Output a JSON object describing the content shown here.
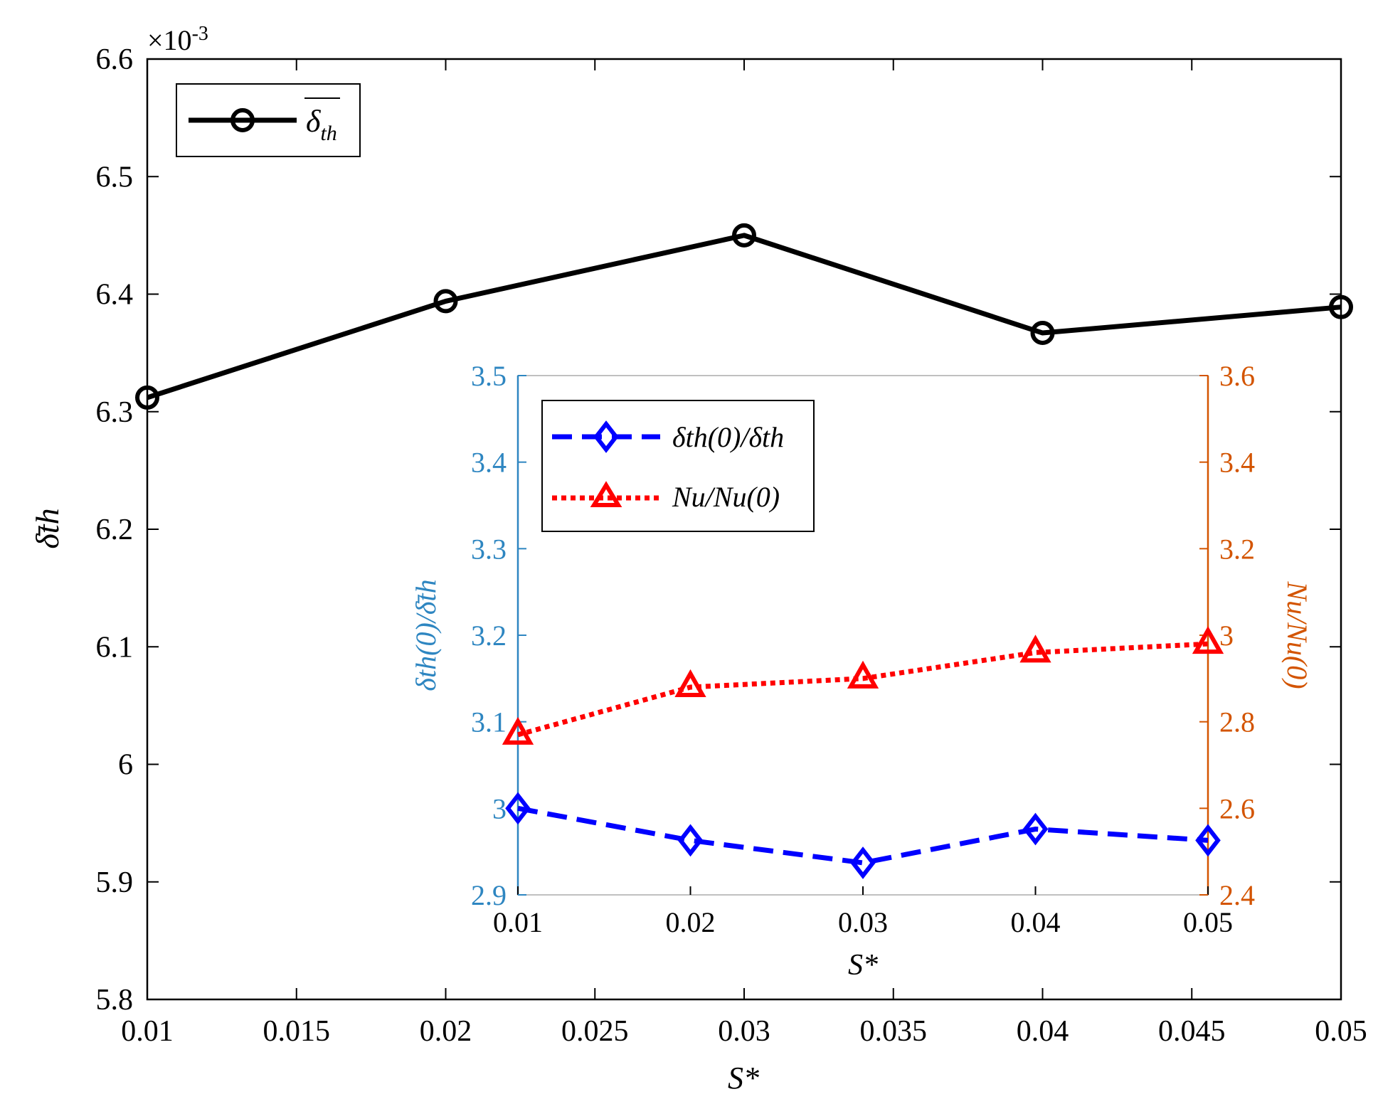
{
  "chart_data": [
    {
      "type": "line",
      "name": "main",
      "xlabel": "S*",
      "ylabel": "δ̄th",
      "exponent_label": "×10",
      "exponent_power": "-3",
      "xlim": [
        0.01,
        0.05
      ],
      "ylim": [
        5.8,
        6.6
      ],
      "xticks": [
        0.01,
        0.015,
        0.02,
        0.025,
        0.03,
        0.035,
        0.04,
        0.045,
        0.05
      ],
      "xtick_labels": [
        "0.01",
        "0.015",
        "0.02",
        "0.025",
        "0.03",
        "0.035",
        "0.04",
        "0.045",
        "0.05"
      ],
      "yticks": [
        5.8,
        5.9,
        6.0,
        6.1,
        6.2,
        6.3,
        6.4,
        6.5,
        6.6
      ],
      "ytick_labels": [
        "5.8",
        "5.9",
        "6",
        "6.1",
        "6.2",
        "6.3",
        "6.4",
        "6.5",
        "6.6"
      ],
      "legend_position": "top-left",
      "series": [
        {
          "name": "δth (mean)",
          "legend_base": "δ",
          "legend_sub": "th",
          "color": "#000000",
          "marker": "circle",
          "x": [
            0.01,
            0.02,
            0.03,
            0.04,
            0.05
          ],
          "y": [
            6.312,
            6.394,
            6.45,
            6.367,
            6.389
          ]
        }
      ]
    },
    {
      "type": "line",
      "name": "inset",
      "xlabel": "S*",
      "ylabel_left": "δth(0)/δ̄th",
      "ylabel_right": "Nu/Nu(0)",
      "xlim": [
        0.01,
        0.05
      ],
      "ylim_left": [
        2.9,
        3.5
      ],
      "ylim_right": [
        2.4,
        3.6
      ],
      "xticks": [
        0.01,
        0.02,
        0.03,
        0.04,
        0.05
      ],
      "xtick_labels": [
        "0.01",
        "0.02",
        "0.03",
        "0.04",
        "0.05"
      ],
      "yticks_left": [
        2.9,
        3.0,
        3.1,
        3.2,
        3.3,
        3.4,
        3.5
      ],
      "ytick_labels_left": [
        "2.9",
        "3",
        "3.1",
        "3.2",
        "3.3",
        "3.4",
        "3.5"
      ],
      "yticks_right": [
        2.4,
        2.6,
        2.8,
        3.0,
        3.2,
        3.4,
        3.6
      ],
      "ytick_labels_right": [
        "2.4",
        "2.6",
        "2.8",
        "3",
        "3.2",
        "3.4",
        "3.6"
      ],
      "left_axis_color": "#2E86C1",
      "right_axis_color": "#D35400",
      "legend_position": "top-left",
      "series": [
        {
          "name": "δth(0)/δth (mean)",
          "legend_label": "δth(0)/δth",
          "axis": "left",
          "color": "#0000FF",
          "marker": "diamond",
          "line_style": "dashed",
          "x": [
            0.01,
            0.02,
            0.03,
            0.04,
            0.05
          ],
          "y": [
            3.0,
            2.963,
            2.937,
            2.976,
            2.963
          ]
        },
        {
          "name": "Nu/Nu(0)",
          "legend_label": "Nu/Nu(0)",
          "axis": "right",
          "color": "#FF0000",
          "marker": "triangle",
          "line_style": "dotted",
          "x": [
            0.01,
            0.02,
            0.03,
            0.04,
            0.05
          ],
          "y": [
            2.77,
            2.88,
            2.9,
            2.96,
            2.98
          ]
        }
      ]
    }
  ]
}
